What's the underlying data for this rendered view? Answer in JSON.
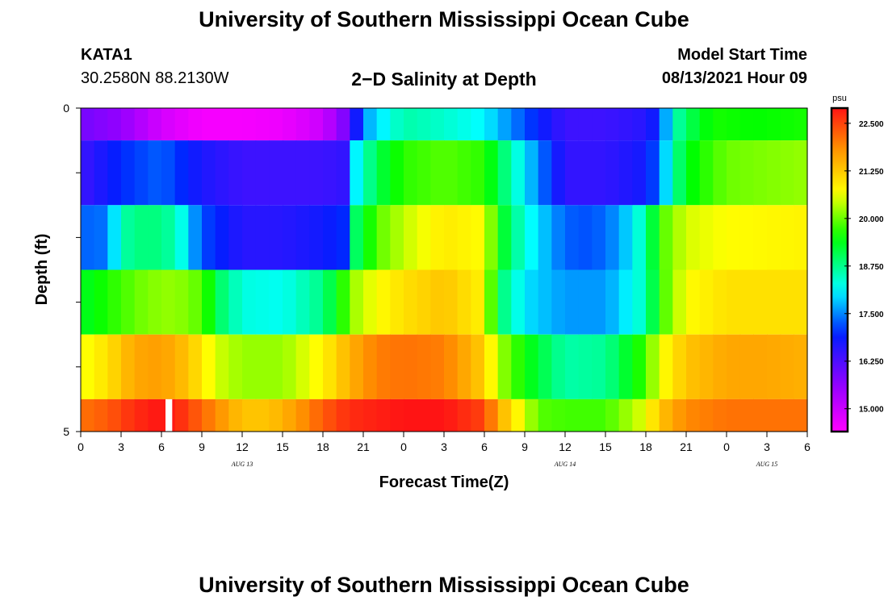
{
  "page": {
    "title_top": "University of Southern Mississippi Ocean Cube",
    "title_bottom": "University of Southern Mississippi Ocean Cube",
    "station": "KATA1",
    "coords": "30.2580N  88.2130W",
    "plot_title": "2−D Salinity at Depth",
    "model_start_label": "Model Start Time",
    "model_start_value": "08/13/2021 Hour 09"
  },
  "chart_data": {
    "type": "heatmap",
    "xlabel": "Forecast Time(Z)",
    "ylabel": "Depth (ft)",
    "x_range_hours": [
      0,
      54
    ],
    "x_tick_labels": [
      "0",
      "3",
      "6",
      "9",
      "12",
      "15",
      "18",
      "21",
      "0",
      "3",
      "6",
      "9",
      "12",
      "15",
      "18",
      "21",
      "0",
      "3",
      "6"
    ],
    "date_labels": [
      {
        "label": "AUG  13",
        "at_hour": 12
      },
      {
        "label": "AUG  14",
        "at_hour": 36
      },
      {
        "label": "AUG  15",
        "at_hour": 51
      }
    ],
    "y_tick_labels": [
      {
        "label": "0",
        "depth": 0
      },
      {
        "label": "5",
        "depth": 5
      }
    ],
    "y_range": [
      0,
      5
    ],
    "colorbar": {
      "unit": "psu",
      "min": 14.4,
      "max": 22.9,
      "ticks": [
        "15.000",
        "16.250",
        "17.500",
        "18.750",
        "20.000",
        "21.250",
        "22.500"
      ],
      "tick_values": [
        15.0,
        16.25,
        17.5,
        18.75,
        20.0,
        21.25,
        22.5
      ]
    },
    "layers": [
      {
        "depth_top": 0.0,
        "depth_bottom": 0.5,
        "times": [
          0,
          3,
          6,
          9,
          12,
          15,
          18,
          20,
          21,
          24,
          27,
          30,
          33,
          36,
          39,
          42,
          43,
          44,
          45,
          47,
          50,
          54
        ],
        "values": [
          15.9,
          15.6,
          14.9,
          14.5,
          14.5,
          14.6,
          15.0,
          16.0,
          17.6,
          18.6,
          18.4,
          18.1,
          17.2,
          16.4,
          16.4,
          16.6,
          17.0,
          18.4,
          19.0,
          19.6,
          19.5,
          19.6
        ]
      },
      {
        "depth_top": 0.5,
        "depth_bottom": 1.5,
        "times": [
          0,
          3,
          6,
          9,
          12,
          15,
          18,
          19.5,
          20.5,
          22,
          24,
          27,
          30,
          33,
          36,
          39,
          42,
          43,
          44,
          45,
          48,
          54
        ],
        "values": [
          16.4,
          17.0,
          17.3,
          16.7,
          16.4,
          16.4,
          16.4,
          16.5,
          18.1,
          19.1,
          19.7,
          19.9,
          19.7,
          18.0,
          16.5,
          16.5,
          16.8,
          17.4,
          18.5,
          19.4,
          20.0,
          20.2
        ]
      },
      {
        "depth_top": 1.5,
        "depth_bottom": 2.5,
        "times": [
          0,
          2,
          3,
          5,
          7,
          9,
          12,
          15,
          18,
          19.5,
          20.5,
          22,
          24,
          27,
          30,
          31,
          33,
          36,
          38,
          40,
          42,
          43,
          45,
          48,
          54
        ],
        "values": [
          17.3,
          17.4,
          18.6,
          18.9,
          18.6,
          17.2,
          16.6,
          16.6,
          16.8,
          17.0,
          19.0,
          19.9,
          20.4,
          20.9,
          20.7,
          19.5,
          18.3,
          17.3,
          17.2,
          17.6,
          18.6,
          19.8,
          20.5,
          20.7,
          20.8
        ]
      },
      {
        "depth_top": 2.5,
        "depth_bottom": 3.5,
        "times": [
          0,
          3,
          5,
          7,
          9,
          10.5,
          12,
          15,
          18,
          19,
          20.5,
          22,
          24,
          27,
          30,
          31,
          33,
          36,
          39,
          42,
          43,
          45,
          48,
          51,
          54
        ],
        "values": [
          19.3,
          19.8,
          20.1,
          20.2,
          19.9,
          18.9,
          18.3,
          18.2,
          18.8,
          19.4,
          20.3,
          20.7,
          21.0,
          21.3,
          20.8,
          19.0,
          18.0,
          17.6,
          17.6,
          18.5,
          19.7,
          20.7,
          21.0,
          21.0,
          21.0
        ]
      },
      {
        "depth_top": 3.5,
        "depth_bottom": 4.5,
        "times": [
          0,
          2,
          4,
          6,
          8,
          10,
          12,
          15,
          18,
          20,
          22,
          24,
          27,
          30,
          31,
          33,
          36,
          39,
          42,
          43,
          45,
          48,
          51,
          54
        ],
        "values": [
          20.6,
          21.0,
          21.6,
          21.7,
          21.3,
          20.5,
          20.2,
          20.2,
          20.8,
          21.5,
          22.0,
          22.1,
          22.0,
          21.2,
          20.3,
          19.5,
          18.6,
          18.7,
          19.8,
          20.6,
          21.3,
          21.6,
          21.6,
          21.5
        ]
      },
      {
        "depth_top": 4.5,
        "depth_bottom": 5.0,
        "times": [
          0,
          2,
          4,
          6,
          7,
          9,
          11,
          12,
          14,
          16,
          18,
          20,
          22,
          24,
          27,
          30,
          31,
          33,
          34,
          36,
          39,
          42,
          43,
          45,
          48,
          51,
          54
        ],
        "values": [
          22.1,
          22.3,
          22.7,
          22.9,
          22.8,
          22.2,
          21.6,
          21.3,
          21.3,
          21.7,
          22.3,
          22.7,
          22.8,
          22.9,
          22.9,
          22.5,
          21.6,
          20.5,
          19.9,
          19.8,
          19.8,
          20.6,
          21.3,
          21.9,
          22.1,
          22.1,
          22.1
        ]
      }
    ],
    "gap_marker": {
      "hour_start": 6.3,
      "hour_end": 6.8,
      "depth_top": 4.5,
      "depth_bottom": 5.0
    }
  }
}
